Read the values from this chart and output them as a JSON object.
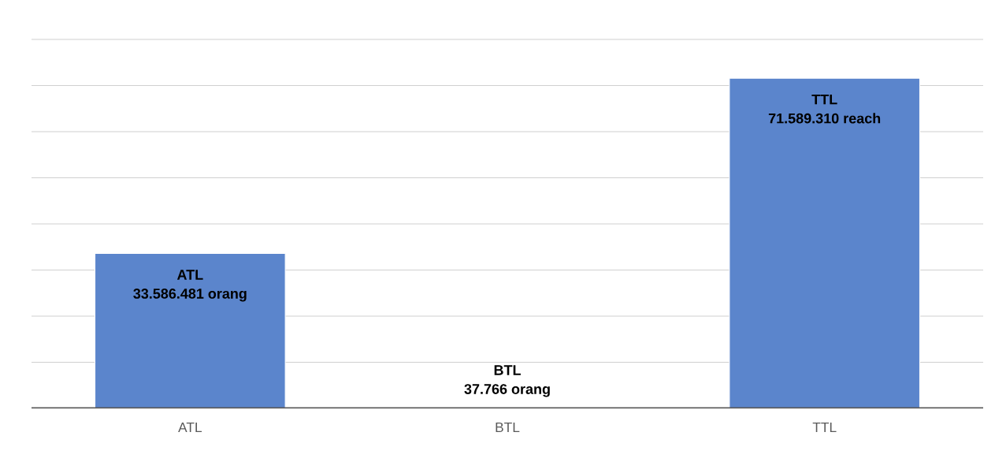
{
  "chart_data": {
    "type": "bar",
    "categories": [
      "ATL",
      "BTL",
      "TTL"
    ],
    "values": [
      33586481,
      37766,
      71589310
    ],
    "color": "#5b85cc",
    "value_labels": [
      "33.586.481 orang",
      "37.766 orang",
      "71.589.310 reach"
    ],
    "tick_labels": "x",
    "grid": "y"
  }
}
